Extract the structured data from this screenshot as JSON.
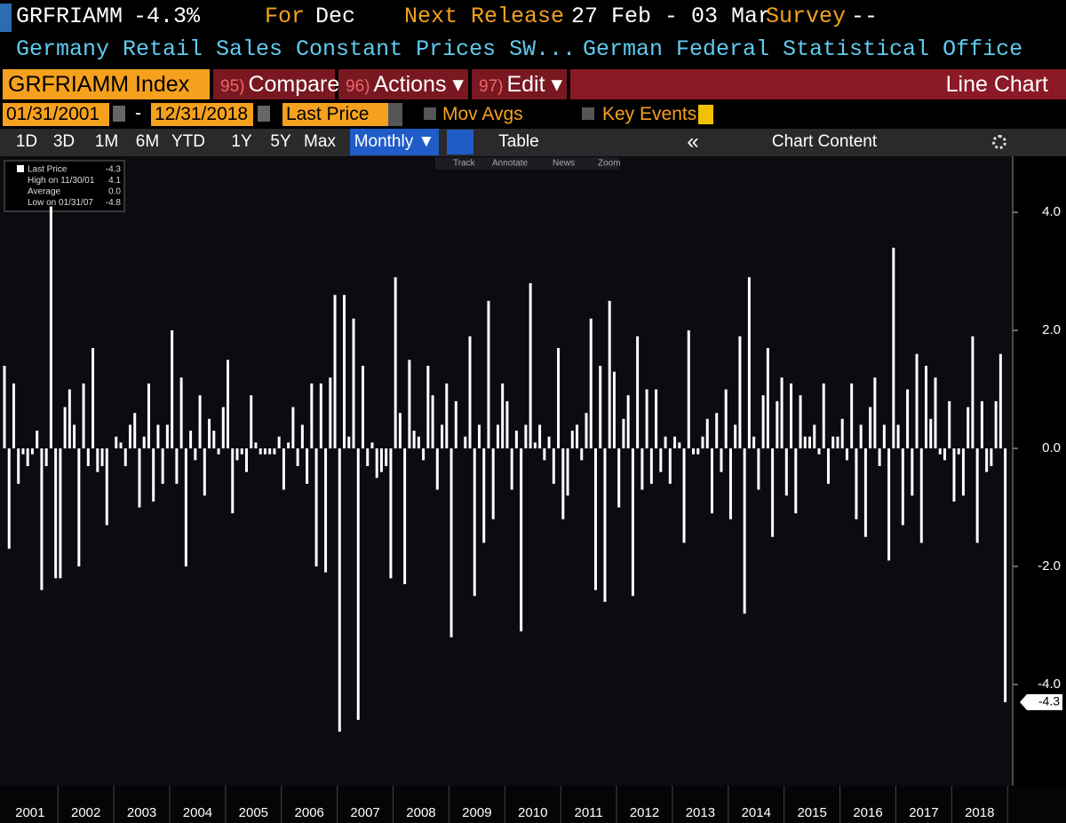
{
  "header": {
    "ticker": "GRFRIAMM",
    "change": "-4.3%",
    "for_label": "For",
    "for_value": "Dec",
    "release_label": "Next Release",
    "release_value": "27 Feb - 03 Mar",
    "survey_label": "Survey",
    "survey_value": "--",
    "description": "Germany Retail Sales Constant Prices SW...",
    "source": "German Federal Statistical Office"
  },
  "menu": {
    "security": "GRFRIAMM Index",
    "compare_num": "95)",
    "compare": "Compare",
    "actions_num": "96)",
    "actions": "Actions ▾",
    "edit_num": "97)",
    "edit": "Edit ▾",
    "chart_type": "Line Chart"
  },
  "range": {
    "start": "01/31/2001",
    "dash": "-",
    "end": "12/31/2018",
    "field": "Last Price",
    "mov_avgs": "Mov Avgs",
    "key_events": "Key Events"
  },
  "toolbar": {
    "buttons": [
      "1D",
      "3D",
      "1M",
      "6M",
      "YTD",
      "1Y",
      "5Y",
      "Max"
    ],
    "period": "Monthly ▼",
    "table": "Table",
    "collapse": "«",
    "chart_content": "Chart Content"
  },
  "chart_tools": [
    "Track",
    "Annotate",
    "News",
    "Zoom"
  ],
  "chart_data": {
    "type": "bar",
    "color": "#ffffff",
    "legend": [
      {
        "name": "Last Price",
        "value": -4.3
      },
      {
        "name": "High on 11/30/01",
        "value": 4.1
      },
      {
        "name": "Average",
        "value": {
          "value": 0,
          "label": "0.0"
        }
      },
      {
        "name": "Low on 01/31/07",
        "value": -4.8
      }
    ],
    "years": [
      "2001",
      "2002",
      "2003",
      "2004",
      "2005",
      "2006",
      "2007",
      "2008",
      "2009",
      "2010",
      "2011",
      "2012",
      "2013",
      "2014",
      "2015",
      "2016",
      "2017",
      "2018"
    ],
    "values": [
      1.4,
      -1.7,
      1.1,
      -0.6,
      -0.1,
      -0.3,
      -0.1,
      0.3,
      -2.4,
      -0.3,
      4.1,
      -2.2,
      -2.2,
      0.7,
      1.0,
      0.4,
      -2.0,
      1.1,
      -0.3,
      1.7,
      -0.4,
      -0.3,
      -1.3,
      0.0,
      0.2,
      0.1,
      -0.3,
      0.4,
      0.6,
      -1.0,
      0.2,
      1.1,
      -0.9,
      0.4,
      -0.6,
      0.4,
      2.0,
      -0.6,
      1.2,
      -2.0,
      0.3,
      -0.2,
      0.9,
      -0.8,
      0.5,
      0.3,
      -0.1,
      0.7,
      1.5,
      -1.1,
      -0.2,
      -0.1,
      -0.4,
      0.9,
      0.1,
      -0.1,
      -0.1,
      -0.1,
      -0.1,
      0.2,
      -0.7,
      0.1,
      0.7,
      -0.3,
      0.4,
      -0.6,
      1.1,
      -2.0,
      1.1,
      -2.1,
      1.2,
      2.6,
      -4.8,
      2.6,
      0.2,
      2.2,
      -4.6,
      1.4,
      -0.3,
      0.1,
      -0.5,
      -0.4,
      -0.3,
      -2.2,
      2.9,
      0.6,
      -2.3,
      1.5,
      0.3,
      0.2,
      -0.2,
      1.4,
      0.9,
      -0.7,
      0.4,
      1.1,
      -3.2,
      0.8,
      0.0,
      0.2,
      1.9,
      -2.5,
      0.4,
      -1.6,
      2.5,
      -1.2,
      0.4,
      1.1,
      0.8,
      -0.7,
      0.3,
      -3.1,
      0.4,
      2.8,
      0.1,
      0.4,
      -0.2,
      0.2,
      -0.6,
      1.7,
      -1.2,
      -0.8,
      0.3,
      0.4,
      -0.2,
      0.6,
      2.2,
      -2.4,
      1.4,
      -2.6,
      2.5,
      1.3,
      -1.0,
      0.5,
      0.9,
      -2.5,
      1.9,
      -0.7,
      1.0,
      -0.6,
      1.0,
      -0.4,
      0.2,
      -0.6,
      0.2,
      0.1,
      -1.6,
      2.0,
      -0.1,
      -0.1,
      0.2,
      0.5,
      -1.1,
      0.6,
      -0.4,
      1.0,
      -1.2,
      0.4,
      1.9,
      -2.8,
      2.9,
      0.2,
      -0.7,
      0.9,
      1.7,
      -1.5,
      0.8,
      1.2,
      -0.8,
      1.1,
      -1.1,
      0.9,
      0.2,
      0.2,
      0.4,
      -0.1,
      1.1,
      -0.6,
      0.2,
      0.2,
      0.5,
      -0.2,
      1.1,
      -1.2,
      0.4,
      -1.5,
      0.7,
      1.2,
      -0.3,
      0.4,
      -1.9,
      3.4,
      0.4,
      -1.3,
      1.0,
      -0.8,
      1.6,
      -1.6,
      1.4,
      0.5,
      1.2,
      -0.1,
      -0.2,
      0.8,
      -0.9,
      -0.1,
      -0.8,
      0.7,
      1.9,
      -1.6,
      0.8,
      -0.4,
      -0.3,
      0.8,
      1.6,
      -4.3
    ],
    "ylim": [
      -5.58,
      4.95
    ],
    "yticks": [
      {
        "value": -4,
        "label": "-4.0"
      },
      {
        "value": -2,
        "label": "-2.0"
      },
      {
        "value": 0,
        "label": "0.0"
      },
      {
        "value": 2,
        "label": "2.0"
      },
      {
        "value": 4,
        "label": "4.0"
      }
    ]
  }
}
